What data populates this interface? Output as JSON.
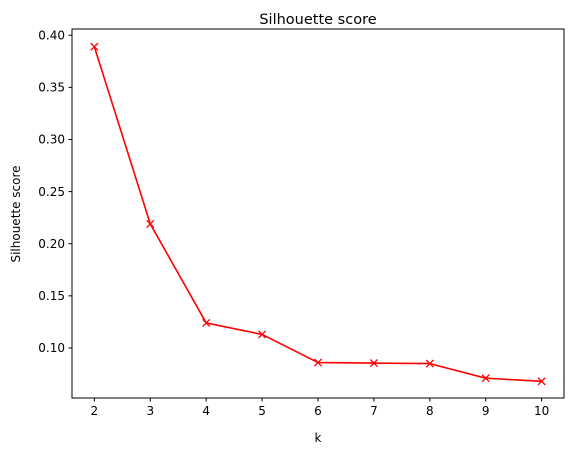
{
  "chart_data": {
    "type": "line",
    "title": "Silhouette score",
    "xlabel": "k",
    "ylabel": "Silhouette score",
    "x": [
      2,
      3,
      4,
      5,
      6,
      7,
      8,
      9,
      10
    ],
    "series": [
      {
        "values": [
          0.389,
          0.219,
          0.124,
          0.113,
          0.086,
          0.0855,
          0.085,
          0.071,
          0.068
        ],
        "color": "#ff0000",
        "marker": "x"
      }
    ],
    "xlim": [
      1.6,
      10.4
    ],
    "ylim": [
      0.052,
      0.406
    ],
    "xticks": [
      "2",
      "3",
      "4",
      "5",
      "6",
      "7",
      "8",
      "9",
      "10"
    ],
    "yticks": [
      "0.10",
      "0.15",
      "0.20",
      "0.25",
      "0.30",
      "0.35",
      "0.40"
    ],
    "grid": false,
    "legend": "none"
  }
}
